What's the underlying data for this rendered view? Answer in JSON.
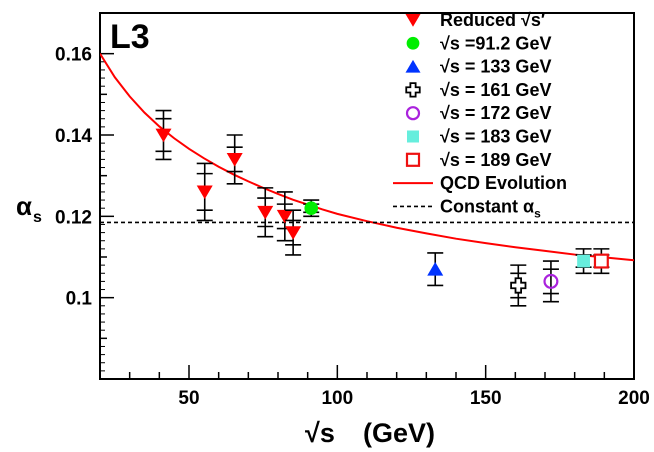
{
  "chart_data": {
    "type": "scatter",
    "panel_label": "L3",
    "xlabel_prefix": "√s",
    "xlabel_unit": "(GeV)",
    "ylabel": "α",
    "ylabel_sub": "s",
    "xlim": [
      20,
      200
    ],
    "ylim": [
      0.08,
      0.17
    ],
    "x_ticks": [
      50,
      100,
      150,
      200
    ],
    "y_ticks": [
      0.1,
      0.12,
      0.14,
      0.16
    ],
    "y_tick_labels": [
      "0.1",
      "0.12",
      "0.14",
      "0.16"
    ],
    "grid": false,
    "legend_position": "top-right",
    "series": [
      {
        "name": "Reduced √s′",
        "marker": "triangle-down",
        "color": "#ff0000",
        "filled": true,
        "points": [
          {
            "x": 41.4,
            "y": 0.14,
            "stat": 0.004,
            "tot": 0.006
          },
          {
            "x": 55.3,
            "y": 0.126,
            "stat": 0.0045,
            "tot": 0.007
          },
          {
            "x": 65.4,
            "y": 0.134,
            "stat": 0.003,
            "tot": 0.006
          },
          {
            "x": 75.7,
            "y": 0.121,
            "stat": 0.0035,
            "tot": 0.006
          },
          {
            "x": 82.3,
            "y": 0.12,
            "stat": 0.003,
            "tot": 0.006
          },
          {
            "x": 85.1,
            "y": 0.116,
            "stat": 0.003,
            "tot": 0.0055
          }
        ]
      },
      {
        "name": "√s =91.2 GeV",
        "marker": "circle",
        "color": "#00ee00",
        "filled": true,
        "points": [
          {
            "x": 91.2,
            "y": 0.122,
            "stat": 0.001,
            "tot": 0.002
          }
        ]
      },
      {
        "name": "√s = 133 GeV",
        "marker": "triangle-up",
        "color": "#0033ff",
        "filled": true,
        "points": [
          {
            "x": 133,
            "y": 0.107,
            "stat": 0.004,
            "tot": 0.004
          }
        ]
      },
      {
        "name": "√s = 161 GeV",
        "marker": "cross",
        "color": "#000000",
        "filled": false,
        "points": [
          {
            "x": 161,
            "y": 0.103,
            "stat": 0.003,
            "tot": 0.005
          }
        ]
      },
      {
        "name": "√s = 172 GeV",
        "marker": "circle",
        "color": "#aa22dd",
        "filled": false,
        "points": [
          {
            "x": 172,
            "y": 0.104,
            "stat": 0.003,
            "tot": 0.005
          }
        ]
      },
      {
        "name": "√s = 183 GeV",
        "marker": "square",
        "color": "#66eedd",
        "filled": true,
        "points": [
          {
            "x": 183,
            "y": 0.109,
            "stat": 0.0015,
            "tot": 0.003
          }
        ]
      },
      {
        "name": "√s = 189 GeV",
        "marker": "square",
        "color": "#ee1111",
        "filled": false,
        "points": [
          {
            "x": 189,
            "y": 0.109,
            "stat": 0.0015,
            "tot": 0.003
          }
        ]
      }
    ],
    "lines": [
      {
        "name": "QCD Evolution",
        "style": "solid",
        "color": "#ff0000",
        "x": [
          20,
          25,
          30,
          35,
          40,
          45,
          50,
          55,
          60,
          65,
          70,
          75,
          80,
          85,
          90,
          95,
          100,
          110,
          120,
          130,
          140,
          150,
          160,
          170,
          180,
          190,
          200
        ],
        "y": [
          0.16,
          0.1542,
          0.1495,
          0.1455,
          0.1421,
          0.1392,
          0.1366,
          0.1343,
          0.1322,
          0.1303,
          0.1286,
          0.127,
          0.1255,
          0.1241,
          0.1229,
          0.1217,
          0.1206,
          0.1188,
          0.1172,
          0.1158,
          0.1145,
          0.1134,
          0.1124,
          0.1115,
          0.1106,
          0.1099,
          0.1092
        ]
      },
      {
        "name": "Constant α",
        "name_sub": "s",
        "style": "dashed",
        "color": "#000000",
        "x": [
          20,
          200
        ],
        "y": [
          0.1185,
          0.1185
        ]
      }
    ]
  }
}
